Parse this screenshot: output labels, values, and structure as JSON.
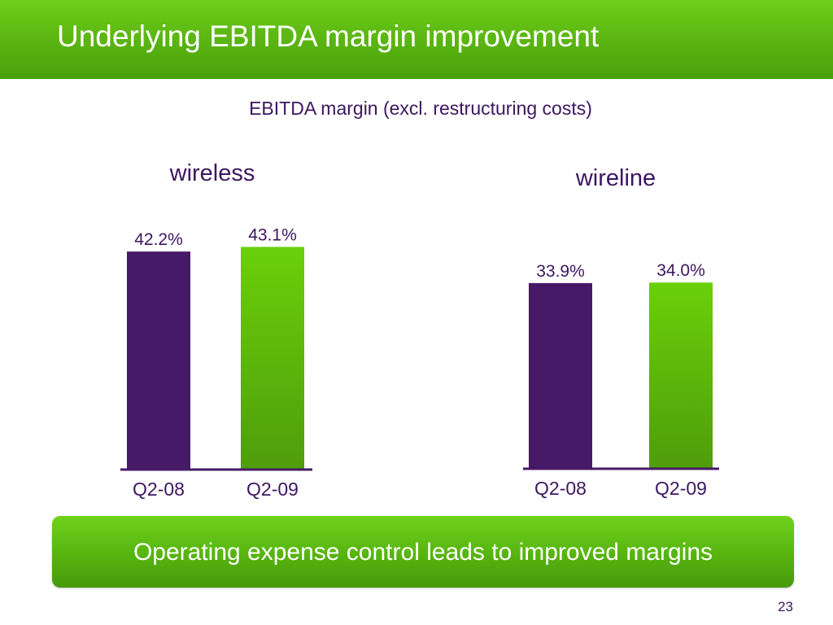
{
  "slide": {
    "title": "Underlying EBITDA margin improvement",
    "banner": "Operating expense control leads to improved margins",
    "page_number": "23"
  },
  "colors": {
    "header_green": "#5cb812",
    "bar_purple": "#461a66",
    "bar_green_top": "#6ad00a",
    "bar_green_bottom": "#4f9d0b",
    "text_purple": "#3d1660"
  },
  "chart_data": [
    {
      "type": "bar",
      "title": "wireless",
      "subtitle": "EBITDA margin (excl. restructuring costs)",
      "categories": [
        "Q2-08",
        "Q2-09"
      ],
      "values": [
        42.2,
        43.1
      ],
      "labels": [
        "42.2%",
        "43.1%"
      ],
      "bar_colors": [
        "purple",
        "green"
      ],
      "unit": "%",
      "ylim": [
        0,
        50
      ],
      "grid": false,
      "legend": "none"
    },
    {
      "type": "bar",
      "title": "wireline",
      "categories": [
        "Q2-08",
        "Q2-09"
      ],
      "values": [
        33.9,
        34.0
      ],
      "labels": [
        "33.9%",
        "34.0%"
      ],
      "bar_colors": [
        "purple",
        "green"
      ],
      "unit": "%",
      "ylim": [
        0,
        41
      ],
      "grid": false,
      "legend": "none"
    }
  ]
}
